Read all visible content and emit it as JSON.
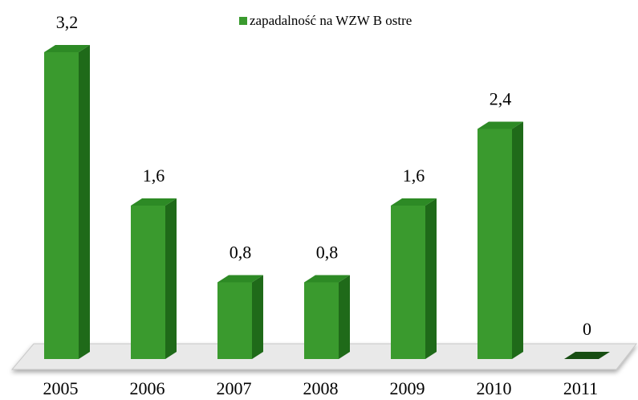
{
  "chart_data": {
    "type": "bar3d",
    "categories": [
      "2005",
      "2006",
      "2007",
      "2008",
      "2009",
      "2010",
      "2011"
    ],
    "series": [
      {
        "name": "zapadalność na WZW B ostre",
        "color": "#3a9a2e",
        "values": [
          3.2,
          1.6,
          0.8,
          0.8,
          1.6,
          2.4,
          0
        ],
        "value_labels": [
          "3,2",
          "1,6",
          "0,8",
          "0,8",
          "1,6",
          "2,4",
          "0"
        ]
      }
    ]
  }
}
